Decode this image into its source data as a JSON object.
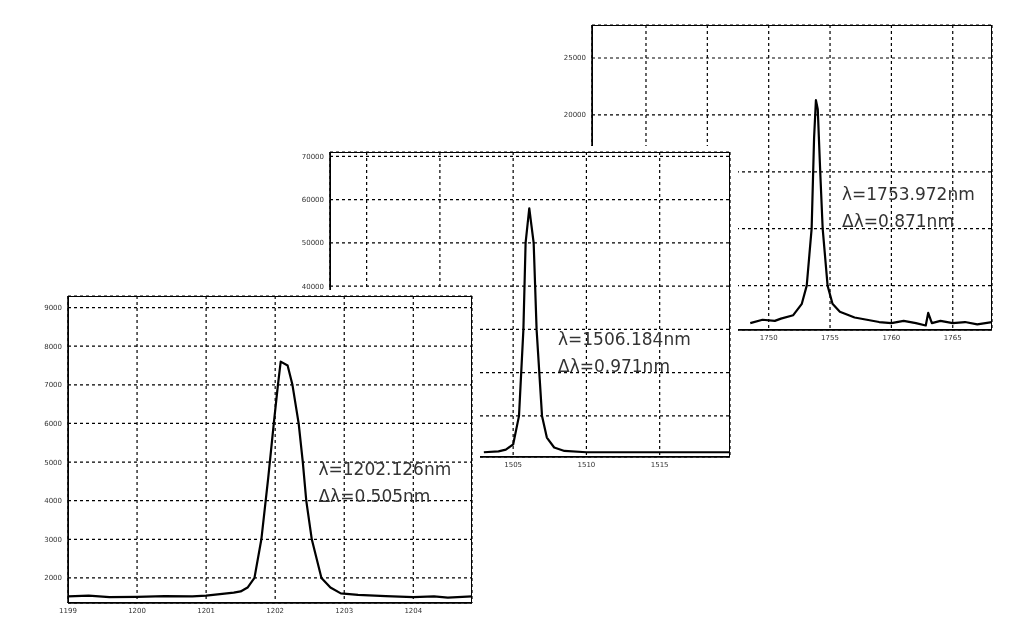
{
  "chart_data": [
    {
      "type": "line",
      "x": [
        1199,
        1199.3,
        1199.6,
        1200,
        1200.4,
        1200.8,
        1201,
        1201.2,
        1201.4,
        1201.5,
        1201.6,
        1201.7,
        1201.8,
        1201.9,
        1201.98,
        1202.04,
        1202.08,
        1202.18,
        1202.25,
        1202.34,
        1202.4,
        1202.45,
        1202.53,
        1202.67,
        1202.8,
        1202.95,
        1203.2,
        1203.6,
        1204,
        1204.3,
        1204.5,
        1204.85
      ],
      "values": [
        1520,
        1540,
        1500,
        1510,
        1530,
        1520,
        1540,
        1580,
        1620,
        1650,
        1750,
        2000,
        3000,
        4600,
        6000,
        7000,
        7600,
        7500,
        7000,
        6000,
        5000,
        4000,
        3000,
        2000,
        1750,
        1600,
        1560,
        1530,
        1500,
        1520,
        1490,
        1520
      ],
      "color": "#000000",
      "xlim": [
        1199,
        1204.85
      ],
      "xticks": [
        1199,
        1200,
        1201,
        1202,
        1203,
        1204
      ],
      "ylim": [
        1350,
        9300
      ],
      "yticks": [
        2000,
        3000,
        4000,
        5000,
        6000,
        7000,
        8000,
        9000
      ],
      "grid": true,
      "marker": "none",
      "line_style": "solid",
      "legend": false,
      "annotations": [
        "λ=1202.126nm",
        "Δλ=0.505nm"
      ]
    },
    {
      "type": "line",
      "x": [
        1503,
        1504,
        1504.5,
        1505,
        1505.4,
        1505.7,
        1505.85,
        1506.1,
        1506.25,
        1506.4,
        1506.6,
        1506.97,
        1507.3,
        1507.8,
        1508.5,
        1510,
        1515,
        1519.8
      ],
      "values": [
        1600,
        1800,
        2200,
        3400,
        10000,
        30000,
        50000,
        58000,
        54000,
        50000,
        30000,
        10000,
        5000,
        2700,
        1900,
        1600,
        1600,
        1600
      ],
      "color": "#000000",
      "xlim": [
        1492.5,
        1519.8
      ],
      "xticks": [
        {
          "value": 1495,
          "label": null
        },
        {
          "value": 1500,
          "label": null
        },
        1505,
        1510,
        1515
      ],
      "ylim": [
        500,
        71000
      ],
      "yticks": [
        {
          "value": 10000,
          "label": null
        },
        {
          "value": 20000,
          "label": null
        },
        {
          "value": 30000,
          "label": null
        },
        40000,
        50000,
        60000,
        70000
      ],
      "grid": true,
      "marker": "none",
      "line_style": "solid",
      "legend": false,
      "annotations": [
        "λ=1506.184nm",
        "Δλ=0.971nm"
      ]
    },
    {
      "type": "line",
      "x": [
        1748.5,
        1749.5,
        1750.5,
        1751,
        1752,
        1752.7,
        1753.1,
        1753.5,
        1753.7,
        1753.85,
        1754,
        1754.2,
        1754.4,
        1754.8,
        1755.2,
        1755.8,
        1757,
        1758,
        1759,
        1760,
        1761,
        1762,
        1762.8,
        1763,
        1763.3,
        1764,
        1765,
        1766,
        1767,
        1768.2
      ],
      "values": [
        1700,
        2000,
        1900,
        2100,
        2400,
        3400,
        5000,
        10000,
        18000,
        21300,
        20500,
        15000,
        10000,
        5000,
        3400,
        2700,
        2200,
        2000,
        1800,
        1700,
        1900,
        1700,
        1500,
        2600,
        1700,
        1900,
        1700,
        1800,
        1600,
        1800
      ],
      "color": "#000000",
      "xlim": [
        1735.6,
        1768.2
      ],
      "xticks": [
        {
          "value": 1740,
          "label": null
        },
        {
          "value": 1745,
          "label": null
        },
        1750,
        1755,
        1760,
        1765
      ],
      "ylim": [
        1100,
        27900
      ],
      "yticks": [
        {
          "value": 5000,
          "label": null
        },
        {
          "value": 10000,
          "label": null
        },
        {
          "value": 15000,
          "label": null
        },
        20000,
        25000
      ],
      "grid": true,
      "marker": "none",
      "line_style": "solid",
      "legend": false,
      "annotations": [
        "λ=1753.972nm",
        "Δλ=0.871nm"
      ]
    }
  ]
}
